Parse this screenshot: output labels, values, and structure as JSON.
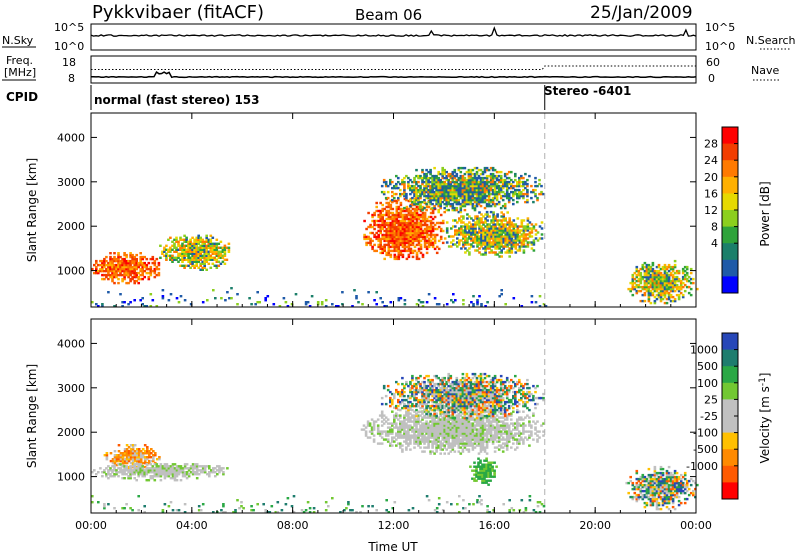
{
  "header": {
    "station": "Pykkvibaer (fitACF)",
    "beam": "Beam 06",
    "date": "25/Jan/2009"
  },
  "noise_panel": {
    "left_label": "N.Sky",
    "right_label": "N.Search",
    "left_ticks": [
      "10^5",
      "10^0"
    ],
    "right_ticks": [
      "10^5",
      "10^0"
    ]
  },
  "freq_panel": {
    "left_label_line1": "Freq.",
    "left_label_line2": "[MHz]",
    "right_label": "Nave",
    "left_ticks": [
      "18",
      "8"
    ],
    "right_ticks": [
      "60",
      "0"
    ]
  },
  "cpid_panel": {
    "label": "CPID",
    "segments": [
      {
        "text": "normal (fast stereo) 153",
        "start_hour": 0
      },
      {
        "text": "Stereo -6401",
        "start_hour": 18
      }
    ]
  },
  "chart_data": [
    {
      "type": "heatmap",
      "ylabel": "Slant Range [km]",
      "xlabel": "Time UT",
      "xlim_hours": [
        0,
        24
      ],
      "ylim": [
        180,
        4550
      ],
      "x_ticks": [
        "00:00",
        "04:00",
        "08:00",
        "12:00",
        "16:00",
        "20:00",
        "00:00"
      ],
      "y_ticks": [
        1000,
        2000,
        3000,
        4000
      ],
      "colorbar": {
        "label": "Power [dB]",
        "ticks": [
          "28",
          "24",
          "20",
          "16",
          "12",
          "8",
          "4"
        ],
        "colors": [
          "#ff0000",
          "#f33d00",
          "#ff7a00",
          "#ffb000",
          "#e6d900",
          "#8ccf1e",
          "#2fa33a",
          "#1b7f6a",
          "#1f5aa8",
          "#0000ff"
        ]
      },
      "regions": [
        {
          "t": [
            0.0,
            2.7
          ],
          "r": [
            700,
            1400
          ],
          "level": "high"
        },
        {
          "t": [
            2.7,
            5.5
          ],
          "r": [
            1000,
            1800
          ],
          "level": "medium"
        },
        {
          "t": [
            10.8,
            14.0
          ],
          "r": [
            1200,
            2600
          ],
          "level": "high"
        },
        {
          "t": [
            14.0,
            17.9
          ],
          "r": [
            1300,
            2300
          ],
          "level": "medium"
        },
        {
          "t": [
            11.5,
            17.9
          ],
          "r": [
            2300,
            3300
          ],
          "level": "low"
        },
        {
          "t": [
            21.2,
            24.0
          ],
          "r": [
            250,
            1200
          ],
          "level": "medium"
        },
        {
          "t": [
            0.0,
            18.0
          ],
          "r": [
            180,
            600
          ],
          "level": "weak"
        }
      ]
    },
    {
      "type": "heatmap",
      "ylabel": "Slant Range [km]",
      "xlabel": "Time UT",
      "xlim_hours": [
        0,
        24
      ],
      "ylim": [
        180,
        4550
      ],
      "x_ticks": [
        "00:00",
        "04:00",
        "08:00",
        "12:00",
        "16:00",
        "20:00",
        "00:00"
      ],
      "y_ticks": [
        1000,
        2000,
        3000,
        4000
      ],
      "colorbar": {
        "label": "Velocity [m s^-1]",
        "ticks": [
          "1000",
          "500",
          "100",
          "25",
          "-25",
          "-100",
          "-500",
          "-1000"
        ],
        "colors": [
          "#2747b8",
          "#1e7d6e",
          "#2aa845",
          "#72c832",
          "#c0c0c0",
          "#c0c0c0",
          "#ffc000",
          "#ff8a00",
          "#ff5a00",
          "#ff0000"
        ]
      },
      "regions": [
        {
          "t": [
            0.5,
            2.7
          ],
          "r": [
            1150,
            1700
          ],
          "level": "negative"
        },
        {
          "t": [
            0.0,
            5.5
          ],
          "r": [
            900,
            1300
          ],
          "level": "near-zero"
        },
        {
          "t": [
            10.7,
            17.9
          ],
          "r": [
            1500,
            2600
          ],
          "level": "near-zero"
        },
        {
          "t": [
            11.5,
            17.9
          ],
          "r": [
            2300,
            3300
          ],
          "level": "mixed"
        },
        {
          "t": [
            15.0,
            16.1
          ],
          "r": [
            800,
            1400
          ],
          "level": "positive"
        },
        {
          "t": [
            21.2,
            24.0
          ],
          "r": [
            250,
            1200
          ],
          "level": "mixed"
        },
        {
          "t": [
            0.0,
            18.0
          ],
          "r": [
            180,
            600
          ],
          "level": "weak-positive"
        }
      ]
    }
  ]
}
